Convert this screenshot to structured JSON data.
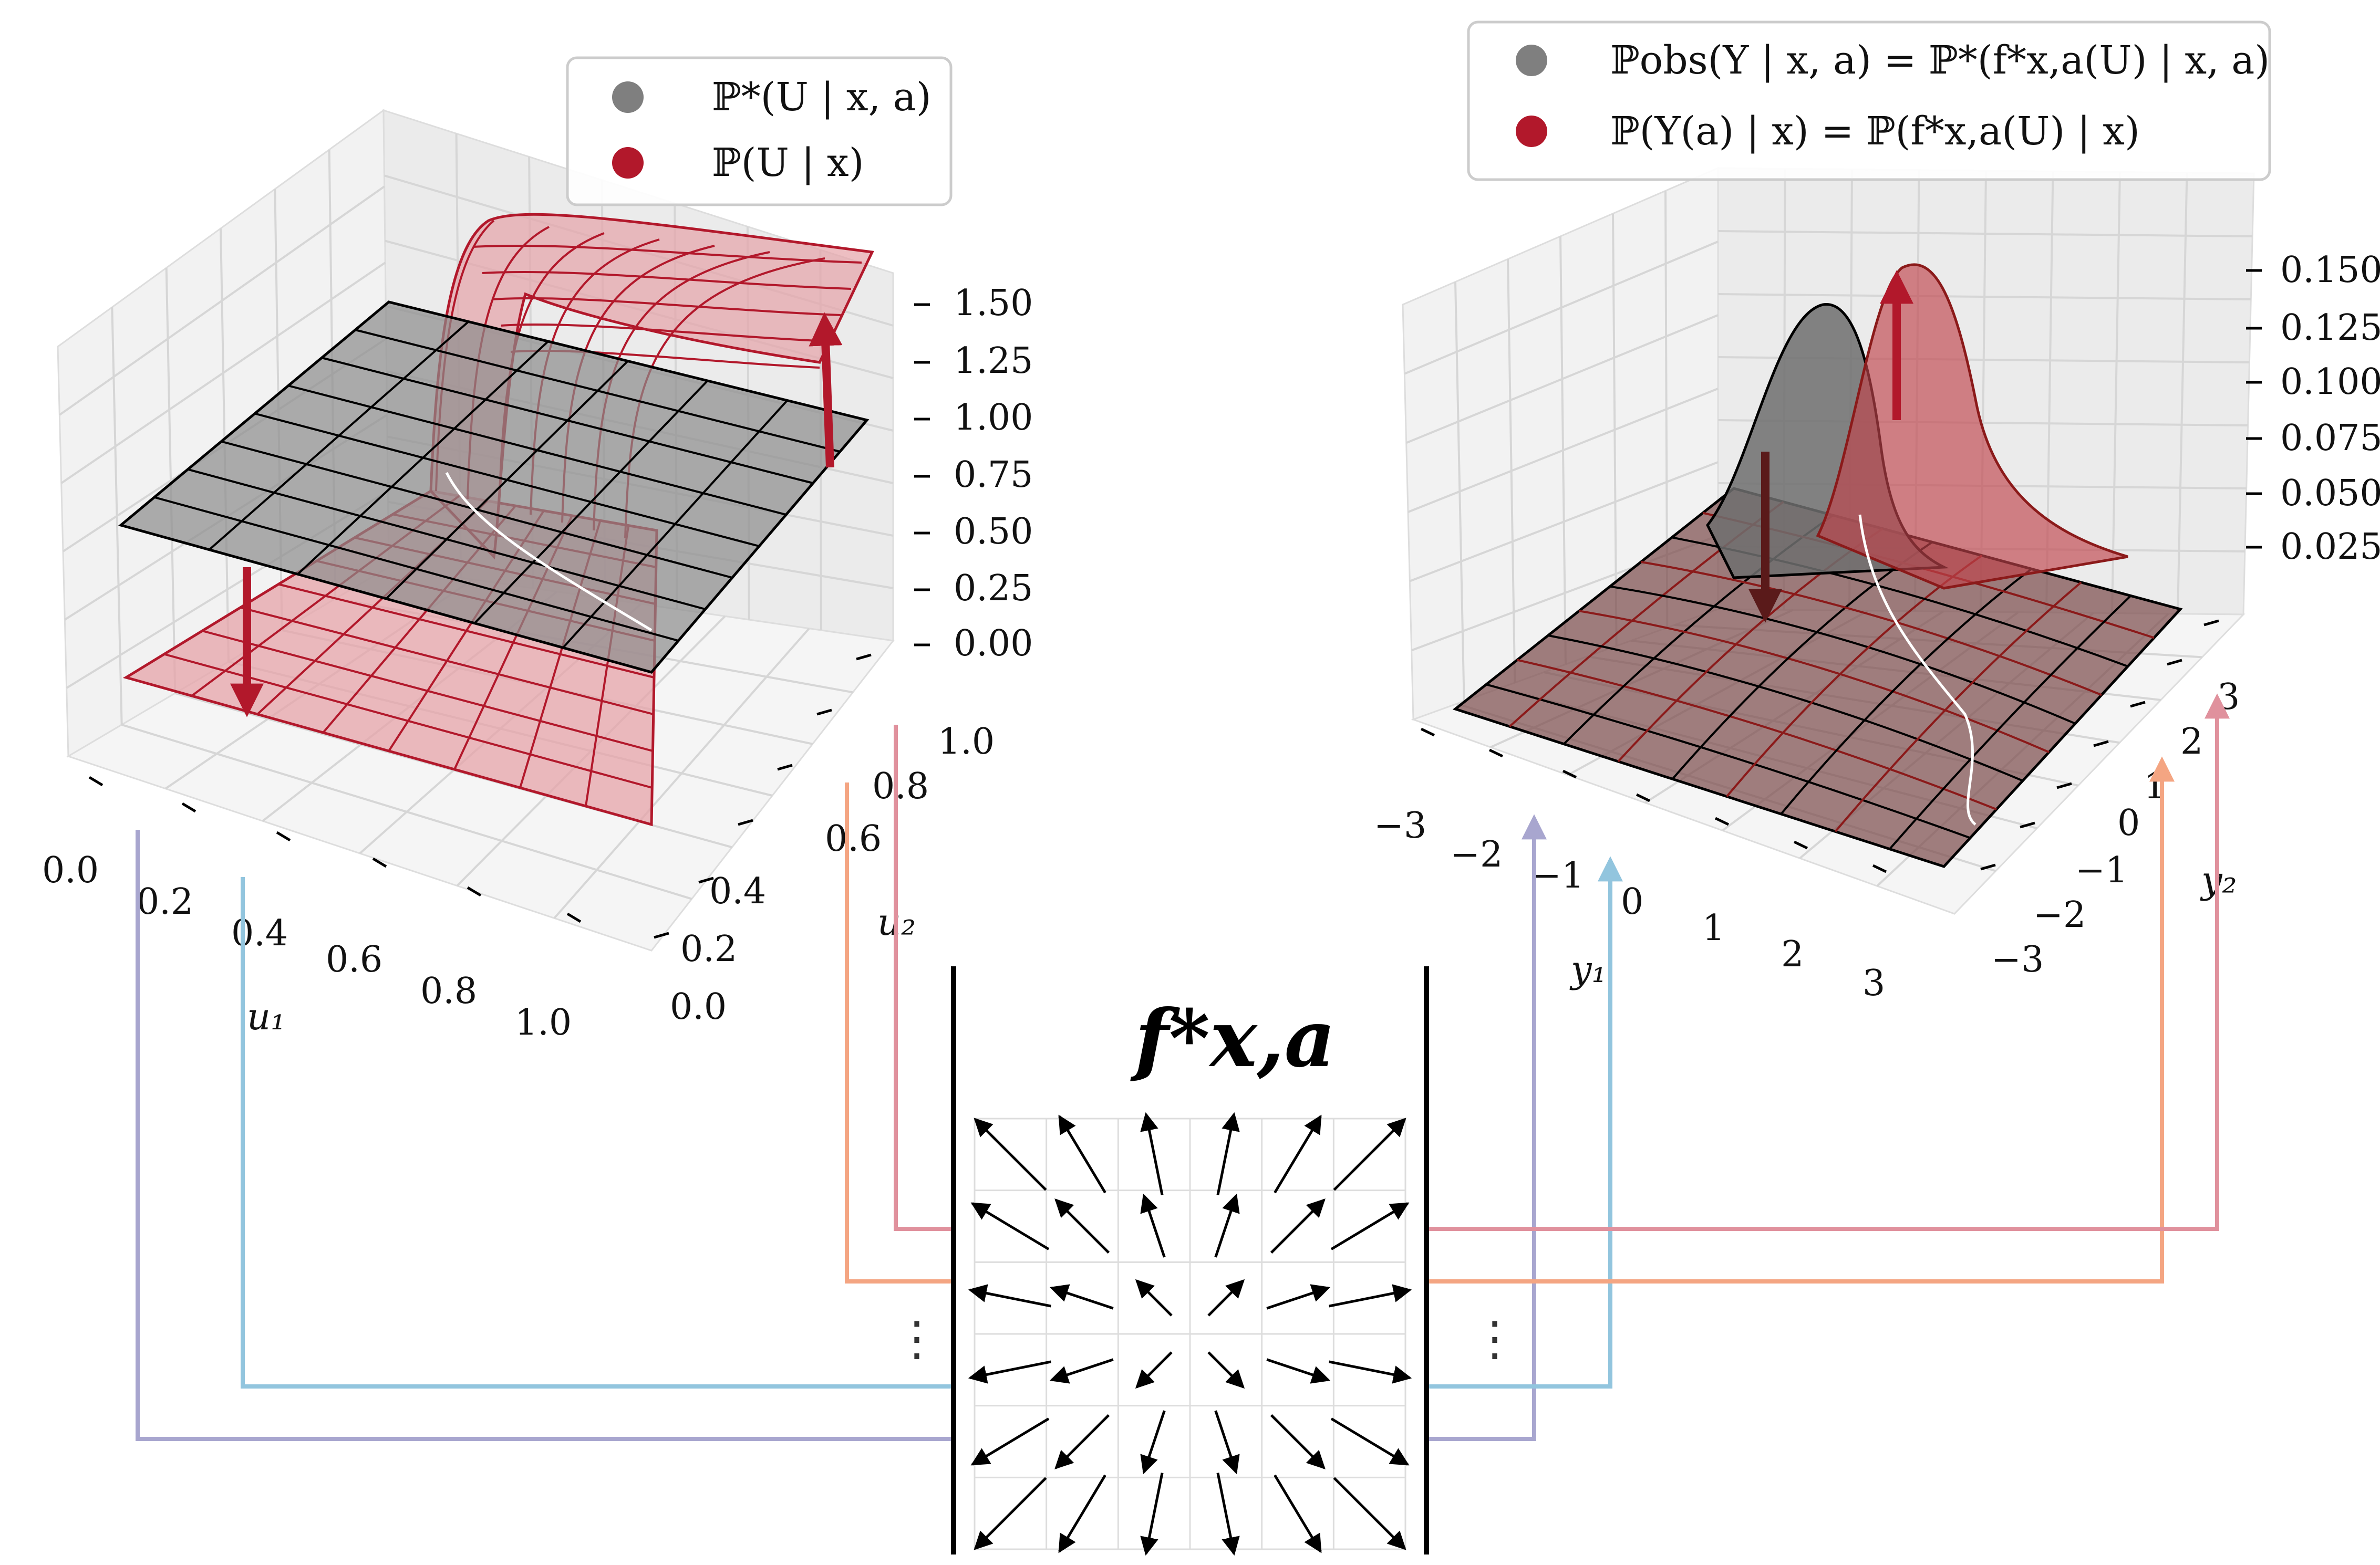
{
  "colors": {
    "gray": "#7f7f7f",
    "red": "#b2182b",
    "lavender": "#a8a6cf",
    "lightblue": "#92c5de",
    "salmon": "#f4a582",
    "pink": "#e0919d"
  },
  "left_panel": {
    "legend": [
      {
        "label": "ℙ*(U | x, a)",
        "color": "#7f7f7f"
      },
      {
        "label": "ℙ(U | x)",
        "color": "#b2182b"
      }
    ],
    "z_ticks": [
      "1.50",
      "1.25",
      "1.00",
      "0.75",
      "0.50",
      "0.25",
      "0.00"
    ],
    "u1_ticks": [
      "0.0",
      "0.2",
      "0.4",
      "0.6",
      "0.8",
      "1.0"
    ],
    "u2_ticks": [
      "0.0",
      "0.2",
      "0.4",
      "0.6",
      "0.8",
      "1.0"
    ],
    "u1_label": "u₁",
    "u2_label": "u₂"
  },
  "right_panel": {
    "legend": [
      {
        "label": "ℙobs(Y | x, a) = ℙ*(f*x,a(U) | x, a)",
        "color": "#7f7f7f"
      },
      {
        "label": "ℙ(Y(a) | x) = ℙ(f*x,a(U) | x)",
        "color": "#b2182b"
      }
    ],
    "z_ticks": [
      "0.150",
      "0.125",
      "0.100",
      "0.075",
      "0.050",
      "0.025"
    ],
    "y1_ticks": [
      "−3",
      "−2",
      "−1",
      "0",
      "1",
      "2",
      "3"
    ],
    "y2_ticks": [
      "3",
      "2",
      "1",
      "0",
      "−1",
      "−2",
      "−3"
    ],
    "y1_label": "y₁",
    "y2_label": "y₂"
  },
  "transform": {
    "title": "f*x,a",
    "left_dots": "⋮",
    "right_dots": "⋮"
  }
}
